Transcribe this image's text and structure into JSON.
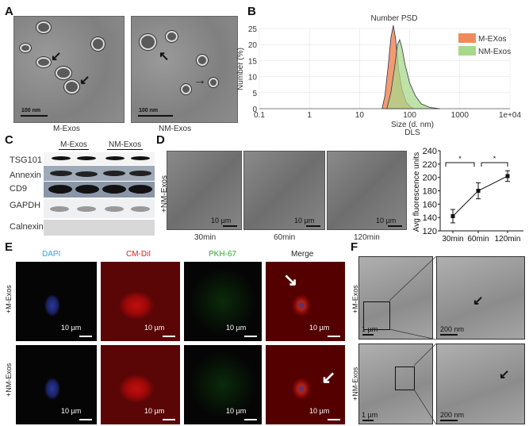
{
  "panels": {
    "A": {
      "label": "A",
      "captions": [
        "M-Exos",
        "NM-Exos"
      ],
      "scale": "100 nm"
    },
    "B": {
      "label": "B"
    },
    "C": {
      "label": "C",
      "groups": [
        "M-Exos",
        "NM-Exos"
      ],
      "rows": [
        "TSG101",
        "Annexin",
        "CD9",
        "GAPDH",
        "Calnexin"
      ]
    },
    "D": {
      "label": "D",
      "row_label": "+NM-Exos",
      "times": [
        "30min",
        "60min",
        "120min"
      ],
      "scale": "10 µm"
    },
    "E": {
      "label": "E",
      "columns": [
        "DAPI",
        "CM-DiI",
        "PKH-67",
        "Merge"
      ],
      "column_colors": [
        "#2aa8e0",
        "#e02020",
        "#22b022",
        "#222222"
      ],
      "rows": [
        "+M-Exos",
        "+NM-Exos"
      ],
      "scale": "10 µm"
    },
    "F": {
      "label": "F",
      "rows": [
        "+M-Exos",
        "+NM-Exos"
      ],
      "scale_low": "1 µm",
      "scale_high": "200 nm"
    }
  },
  "chart_data": [
    {
      "type": "area",
      "title": "Number PSD",
      "xlabel": "Size (d. nm)",
      "xlabel2": "DLS",
      "ylabel": "Number (%)",
      "xscale": "log",
      "xlim": [
        0.1,
        10000
      ],
      "ylim": [
        0,
        25
      ],
      "xticks": [
        "0.1",
        "1",
        "10",
        "100",
        "1000",
        "1e+04"
      ],
      "yticks": [
        "0",
        "5",
        "10",
        "15",
        "20",
        "25"
      ],
      "grid": true,
      "legend": "top-right",
      "series": [
        {
          "name": "M-EXos",
          "color": "#f08a5a",
          "x": [
            28,
            32,
            37,
            42,
            47,
            52,
            60,
            70,
            85,
            100,
            120
          ],
          "y": [
            0,
            4,
            13,
            22,
            26,
            22,
            12,
            6,
            2,
            0.8,
            0
          ]
        },
        {
          "name": "NM-Exos",
          "color": "#a8d88a",
          "x": [
            35,
            42,
            50,
            57,
            63,
            70,
            80,
            100,
            130,
            170,
            250,
            400
          ],
          "y": [
            0,
            5,
            13,
            20,
            21.5,
            19,
            14,
            8,
            4,
            1.5,
            0.4,
            0
          ]
        }
      ]
    },
    {
      "type": "line",
      "ylabel": "Avg fluorescence units",
      "ylim": [
        120,
        240
      ],
      "yticks": [
        "120",
        "140",
        "160",
        "180",
        "200",
        "220",
        "240"
      ],
      "categories": [
        "30min",
        "60min",
        "120min"
      ],
      "values": [
        142,
        180,
        202
      ],
      "errors": [
        10,
        12,
        8
      ],
      "significance": [
        "*",
        "*"
      ]
    }
  ]
}
